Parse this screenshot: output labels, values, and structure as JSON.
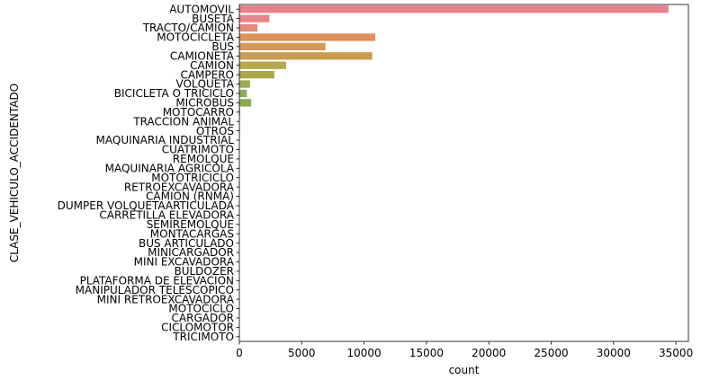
{
  "chart_data": {
    "type": "bar",
    "orientation": "horizontal",
    "xlabel": "count",
    "ylabel": "CLASE_VEHICULO_ACCIDENTADO",
    "xlim": [
      0,
      36000
    ],
    "xticks": [
      0,
      5000,
      10000,
      15000,
      20000,
      25000,
      30000,
      35000
    ],
    "xtick_labels": [
      "0",
      "5000",
      "10000",
      "15000",
      "20000",
      "25000",
      "30000",
      "35000"
    ],
    "grid": false,
    "legend": "none",
    "categories": [
      "AUTOMOVIL",
      "BUSETA",
      "TRACTO/CAMION",
      "MOTOCICLETA",
      "BUS",
      "CAMIONETA",
      "CAMION",
      "CAMPERO",
      "VOLQUETA",
      "BICICLETA O TRICICLO",
      "MICROBUS",
      "MOTOCARRO",
      "TRACCION ANIMAL",
      "OTROS",
      "MAQUINARIA INDUSTRIAL",
      "CUATRIMOTO",
      "REMOLQUE",
      "MAQUINARIA AGRICOLA",
      "MOTOTRICICLO",
      "RETROEXCAVADORA",
      "CAMION (RNMA)",
      "DUMPER VOLQUETAARTICULADA",
      "CARRETILLA ELEVADORA",
      "SEMIREMOLQUE",
      "MONTACARGAS",
      "BUS ARTICULADO",
      "MINICARGADOR",
      "MINI EXCAVADORA",
      "BULDOZER",
      "PLATAFORMA DE ELEVACION",
      "MANIPULADOR TELESCOPICO",
      "MINI RETROEXCAVADORA",
      "MOTOCICLO",
      "CARGADOR",
      "CICLOMOTOR",
      "TRICIMOTO"
    ],
    "values": [
      34400,
      2400,
      1450,
      10900,
      6900,
      10650,
      3750,
      2800,
      850,
      600,
      950,
      60,
      30,
      40,
      20,
      15,
      15,
      15,
      15,
      15,
      10,
      10,
      5,
      5,
      5,
      5,
      5,
      5,
      3,
      3,
      3,
      3,
      3,
      3,
      3,
      3
    ],
    "colors": [
      "#e8818c",
      "#e8858a",
      "#e68a7f",
      "#e0905d",
      "#d29a52",
      "#c79e4f",
      "#b7a84c",
      "#aaa848",
      "#9eab4f",
      "#92ab52",
      "#89ac52",
      "#7db155",
      "#6db65a",
      "#5bb95e",
      "#52ba6e",
      "#52ba81",
      "#53b98f",
      "#54b89b",
      "#55b7a6",
      "#56b6b1",
      "#57b5bb",
      "#59b4c4",
      "#5ab2cc",
      "#5db0d6",
      "#65acde",
      "#72a8e3",
      "#82a2e8",
      "#939cec",
      "#a696ee",
      "#b58fee",
      "#c38aed",
      "#cf86ea",
      "#da81e4",
      "#e17fd8",
      "#e580c8",
      "#e883b7"
    ]
  }
}
